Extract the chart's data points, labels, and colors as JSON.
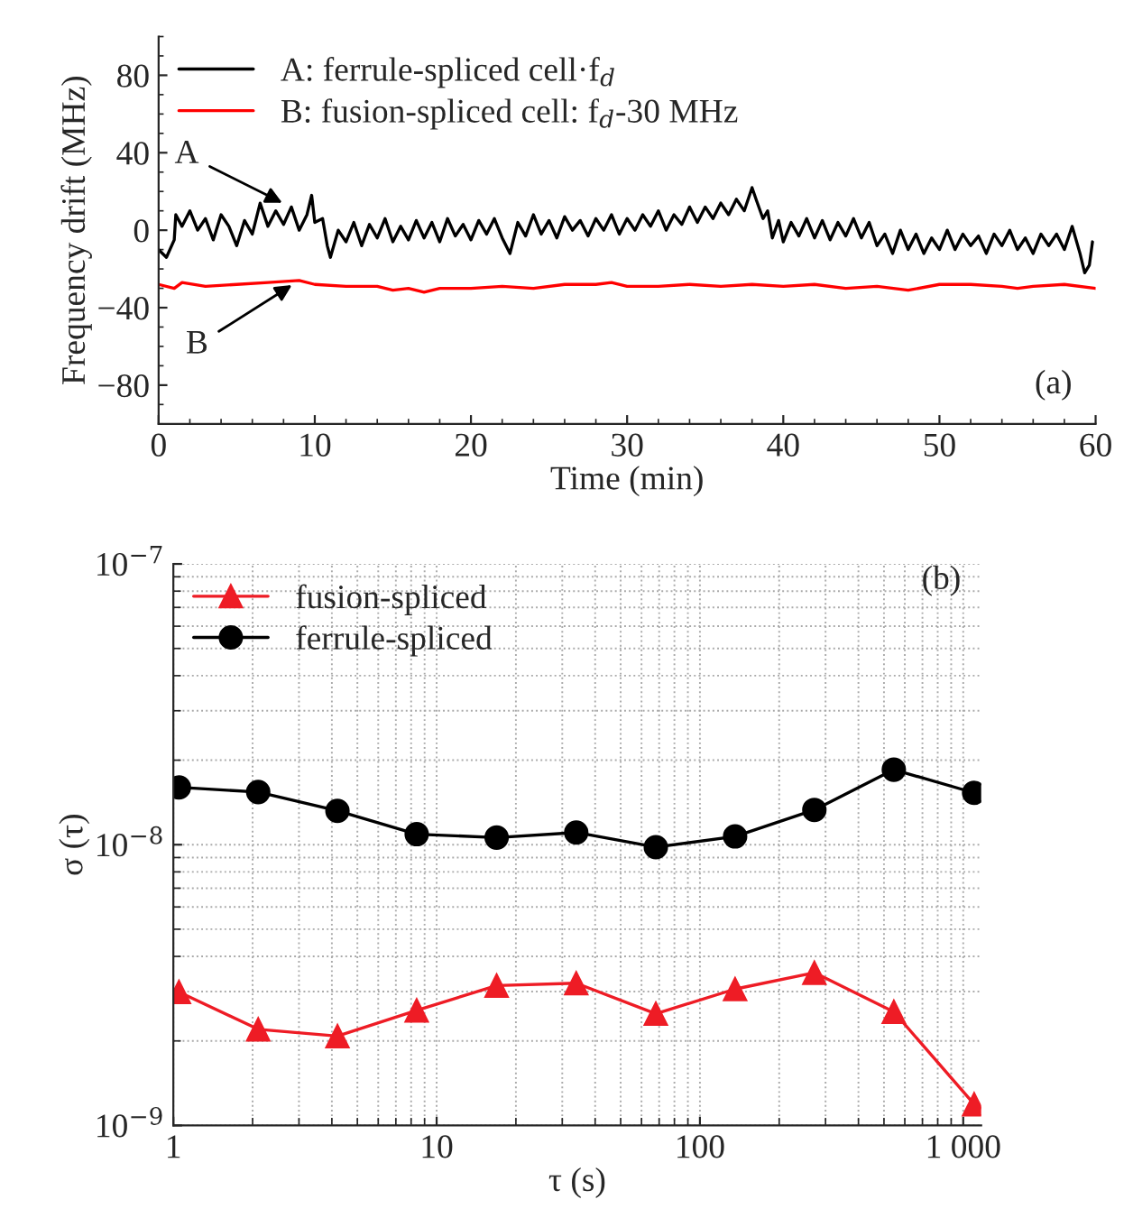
{
  "chart_data": [
    {
      "type": "line",
      "xlabel": "Time (min)",
      "ylabel": "Frequency drift (MHz)",
      "xlim": [
        0,
        60
      ],
      "xticks": [
        0,
        10,
        20,
        30,
        40,
        50,
        60
      ],
      "ylim": [
        -100,
        100
      ],
      "yticks": [
        {
          "value": -80,
          "label": "−80"
        },
        {
          "value": -40,
          "label": "−40"
        },
        0,
        40,
        80
      ],
      "grid": false,
      "legend": "top left",
      "marker": "none",
      "line_style": "solid",
      "series": [
        {
          "name": "A: ferrule-spliced cell·f$_{d}$",
          "color": "#000000",
          "x": [
            0,
            0.5,
            1,
            1.1,
            1.5,
            2,
            2.5,
            3,
            3.5,
            4,
            4.5,
            5,
            5.5,
            6,
            6.5,
            7,
            7.5,
            8,
            8.5,
            9,
            9.5,
            9.8,
            10,
            10.5,
            10.8,
            11,
            11.5,
            12,
            12.5,
            13,
            13.5,
            14,
            14.5,
            15,
            15.5,
            16,
            16.5,
            17,
            17.5,
            18,
            18.5,
            19,
            19.5,
            20,
            20.5,
            21,
            21.5,
            22,
            22.5,
            23,
            23.5,
            24,
            24.5,
            25,
            25.5,
            26,
            26.5,
            27,
            27.5,
            28,
            28.5,
            29,
            29.5,
            30,
            30.5,
            31,
            31.5,
            32,
            32.5,
            33,
            33.5,
            34,
            34.5,
            35,
            35.5,
            36,
            36.5,
            37,
            37.5,
            38,
            38.3,
            38.7,
            39,
            39.3,
            39.7,
            40,
            40.5,
            41,
            41.5,
            42,
            42.5,
            43,
            43.5,
            44,
            44.5,
            45,
            45.5,
            46,
            46.5,
            47,
            47.5,
            48,
            48.5,
            49,
            49.5,
            50,
            50.5,
            51,
            51.5,
            52,
            52.5,
            53,
            53.5,
            54,
            54.5,
            55,
            55.5,
            56,
            56.5,
            57,
            57.5,
            58,
            58.5,
            59,
            59.3,
            59.6,
            59.8
          ],
          "values": [
            -10,
            -14,
            -5,
            8,
            2,
            10,
            0,
            6,
            -5,
            8,
            2,
            -8,
            5,
            -2,
            14,
            2,
            10,
            3,
            12,
            0,
            8,
            18,
            4,
            6,
            -8,
            -14,
            0,
            -6,
            4,
            -8,
            3,
            -4,
            6,
            -6,
            2,
            -5,
            5,
            -4,
            4,
            -6,
            6,
            -3,
            3,
            -5,
            5,
            -2,
            6,
            -4,
            -12,
            4,
            -3,
            8,
            -2,
            5,
            -4,
            7,
            0,
            5,
            -3,
            6,
            0,
            8,
            -2,
            6,
            0,
            8,
            2,
            10,
            0,
            8,
            3,
            12,
            4,
            12,
            6,
            14,
            8,
            16,
            10,
            22,
            15,
            6,
            10,
            -4,
            5,
            -6,
            4,
            -3,
            6,
            -4,
            5,
            -5,
            4,
            -3,
            6,
            -4,
            4,
            -8,
            -2,
            -12,
            0,
            -10,
            -2,
            -12,
            -4,
            -10,
            0,
            -10,
            -2,
            -8,
            -3,
            -12,
            -2,
            -8,
            0,
            -10,
            -4,
            -12,
            -2,
            -8,
            -2,
            -10,
            2,
            -12,
            -22,
            -18,
            -6
          ]
        },
        {
          "name": "B: fusion-spliced cell: f$_{d}$-30 MHz",
          "color": "#ff0000",
          "x": [
            0,
            1,
            1.5,
            3,
            5,
            7,
            9,
            10,
            12,
            14,
            15,
            16,
            17,
            18,
            20,
            22,
            24,
            26,
            28,
            29,
            30,
            32,
            34,
            36,
            38,
            40,
            42,
            44,
            46,
            48,
            50,
            52,
            54,
            55,
            56,
            58,
            60
          ],
          "values": [
            -28,
            -30,
            -27,
            -29,
            -28,
            -27,
            -26,
            -28,
            -29,
            -29,
            -31,
            -30,
            -32,
            -30,
            -30,
            -29,
            -30,
            -28,
            -28,
            -27,
            -29,
            -29,
            -28,
            -29,
            -28,
            -29,
            -28,
            -30,
            -29,
            -31,
            -28,
            -28,
            -29,
            -30,
            -29,
            -28,
            -30
          ]
        }
      ],
      "annotations": [
        {
          "text": "A",
          "x": 8.2,
          "y": 13
        },
        {
          "text": "B",
          "x": 8.8,
          "y": -27
        },
        "(a)"
      ]
    },
    {
      "type": "line",
      "xlabel": "τ (s)",
      "ylabel": "σ (τ)",
      "log": "xy",
      "xlim": [
        1,
        1170
      ],
      "xticks": [
        1,
        10,
        100,
        {
          "value": 1000,
          "label": "1 000"
        }
      ],
      "ylim": [
        1e-09,
        1e-07
      ],
      "yticks": [
        {
          "value": 1e-09,
          "label": "10$^{−9}$"
        },
        {
          "value": 1e-08,
          "label": "10$^{−8}$"
        },
        {
          "value": 1e-07,
          "label": "10$^{−7}$"
        }
      ],
      "grid": true,
      "legend": "top left",
      "line_style": "solid",
      "series": [
        {
          "name": "fusion-spliced",
          "color": "#ee1c25",
          "marker": "triangle",
          "x": [
            1.05,
            2.1,
            4.2,
            8.4,
            16.9,
            33.9,
            68,
            136,
            272,
            545,
            1100
          ],
          "values": [
            2.99e-09,
            2.2e-09,
            2.08e-09,
            2.57e-09,
            3.15e-09,
            3.21e-09,
            2.5e-09,
            3.06e-09,
            3.5e-09,
            2.54e-09,
            1.19e-09
          ]
        },
        {
          "name": "ferrule-spliced",
          "color": "#000000",
          "marker": "circle",
          "x": [
            1.05,
            2.1,
            4.2,
            8.4,
            16.9,
            33.9,
            68,
            136,
            272,
            545,
            1100
          ],
          "values": [
            1.6e-08,
            1.54e-08,
            1.32e-08,
            1.09e-08,
            1.06e-08,
            1.105e-08,
            9.8e-09,
            1.07e-08,
            1.33e-08,
            1.85e-08,
            1.53e-08
          ]
        }
      ],
      "annotations": [
        "(b)"
      ]
    }
  ]
}
